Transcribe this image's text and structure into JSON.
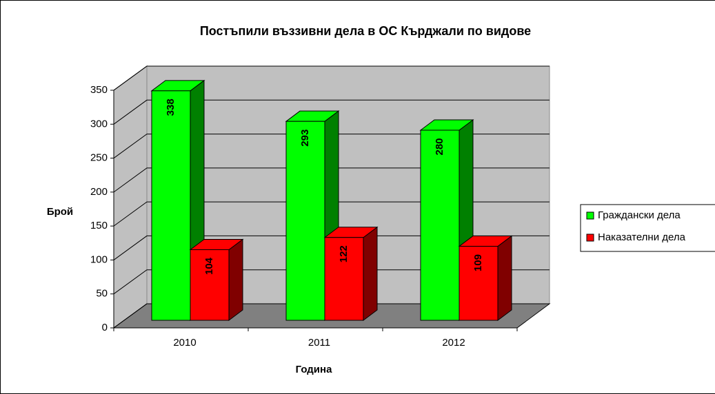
{
  "chart_data": {
    "type": "bar3d",
    "title": "Постъпили въззивни дела в ОС Кърджали по видове",
    "x_label": "Година",
    "y_label": "Брой",
    "categories": [
      "2010",
      "2011",
      "2012"
    ],
    "series": [
      {
        "name": "Граждански дела",
        "color": "#00ff00",
        "side_color": "#008000",
        "values": [
          338,
          293,
          280
        ]
      },
      {
        "name": "Наказателни дела",
        "color": "#ff0000",
        "side_color": "#800000",
        "values": [
          104,
          122,
          109
        ]
      }
    ],
    "ylim": [
      0,
      350
    ],
    "yticks": [
      0,
      50,
      100,
      150,
      200,
      250,
      300,
      350
    ],
    "grid": true,
    "legend": "right"
  }
}
